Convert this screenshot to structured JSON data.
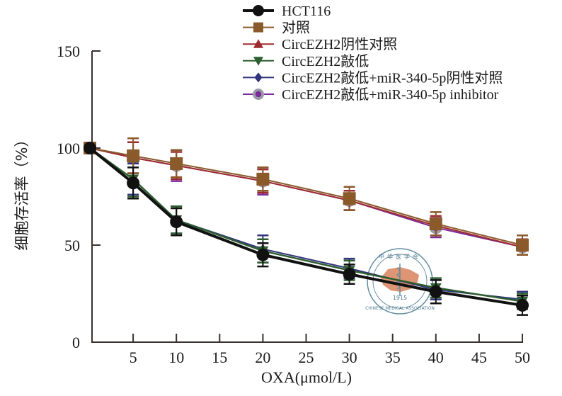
{
  "chart_data": {
    "type": "line",
    "title": "",
    "xlabel": "OXA(μmol/L)",
    "ylabel": "细胞存活率（%）",
    "xlim": [
      0,
      50
    ],
    "ylim": [
      0,
      150
    ],
    "x_ticks": [
      5,
      10,
      15,
      20,
      25,
      30,
      35,
      40,
      45,
      50
    ],
    "x_tick_labels": [
      "5",
      "10",
      "15",
      "20",
      "25",
      "30",
      "35",
      "40",
      "45",
      "50"
    ],
    "y_ticks": [
      0,
      50,
      100,
      150
    ],
    "y_tick_labels": [
      "0",
      "50",
      "100",
      "150"
    ],
    "grid": false,
    "legend_position": "top-right",
    "x": [
      0,
      5,
      10,
      20,
      30,
      40,
      50
    ],
    "series": [
      {
        "name": "HCT116",
        "marker": "circle",
        "color": "#111111",
        "values": [
          100,
          82,
          62,
          45,
          35,
          26,
          19
        ],
        "errors": [
          1,
          8,
          7,
          6,
          5,
          6,
          5
        ]
      },
      {
        "name": "对照",
        "marker": "square",
        "color": "#8a5a2b",
        "values": [
          100,
          96,
          92,
          84,
          74,
          61,
          50
        ],
        "errors": [
          1,
          9,
          7,
          6,
          6,
          6,
          5
        ]
      },
      {
        "name": "CircEZH2阴性对照",
        "marker": "triangle-up",
        "color": "#9e2a2f",
        "values": [
          100,
          95,
          91,
          83,
          73,
          60,
          49
        ],
        "errors": [
          1,
          8,
          7,
          6,
          5,
          5,
          4
        ]
      },
      {
        "name": "CircEZH2敲低",
        "marker": "triangle-down",
        "color": "#2d5e2f",
        "values": [
          100,
          84,
          63,
          47,
          37,
          28,
          21
        ],
        "errors": [
          1,
          9,
          7,
          6,
          5,
          5,
          4
        ]
      },
      {
        "name": "CircEZH2敲低+miR-340-5p阴性对照",
        "marker": "diamond",
        "color": "#33347e",
        "values": [
          100,
          84,
          63,
          48,
          38,
          27,
          22
        ],
        "errors": [
          1,
          8,
          7,
          7,
          5,
          5,
          4
        ]
      },
      {
        "name": "CircEZH2敲低+miR-340-5p inhibitor",
        "marker": "circle-ring",
        "color": "#7a2a9a",
        "values": [
          100,
          95,
          91,
          83,
          73,
          59,
          49
        ],
        "errors": [
          1,
          8,
          8,
          7,
          5,
          5,
          4
        ]
      }
    ],
    "watermark": {
      "top_text": "中华医学会",
      "bottom_text": "CHINESE MEDICAL ASSOCIATION",
      "year": "1915"
    }
  }
}
